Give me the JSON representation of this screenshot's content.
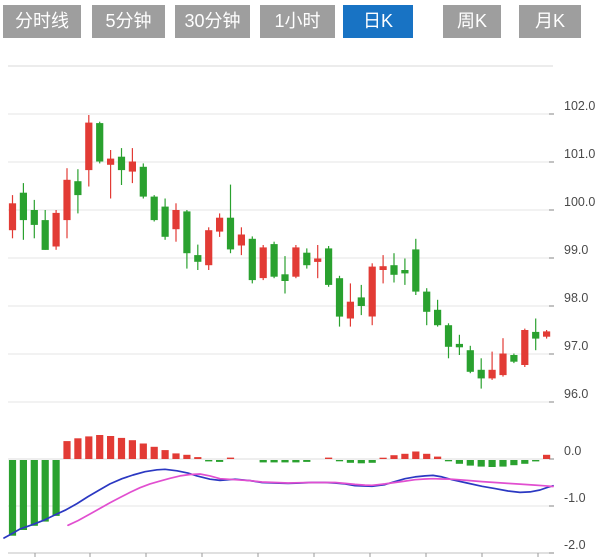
{
  "tabs": {
    "items": [
      {
        "label": "分时线",
        "active": false
      },
      {
        "label": "5分钟",
        "active": false
      },
      {
        "label": "30分钟",
        "active": false
      },
      {
        "label": "1小时",
        "active": false
      },
      {
        "label": "日K",
        "active": true
      },
      {
        "label": "周K",
        "active": false
      },
      {
        "label": "月K",
        "active": false
      }
    ]
  },
  "colors": {
    "background": "#ffffff",
    "tab_inactive": "#9e9e9e",
    "tab_active": "#1873c4",
    "tab_text": "#ffffff",
    "up": "#e23b35",
    "down": "#2aa12f",
    "dif_line": "#2b38c2",
    "dea_line": "#e14fd0",
    "grid": "#e4e4e4",
    "grid_top": "#d9d9d9",
    "zero_line": "#dedede",
    "axis_line": "#c2c2c2",
    "tick": "#9a9a9a",
    "axis_text": "#4a4a4a"
  },
  "chart_data": [
    {
      "type": "candlestick",
      "title": "日K (daily K-line)",
      "legend": "none",
      "grid": "horizontal",
      "ylim": [
        95.4,
        103.0
      ],
      "y_axis": {
        "side": "right",
        "ticks": [
          102.0,
          101.0,
          100.0,
          99.0,
          98.0,
          97.0,
          96.0
        ],
        "labels": [
          "102.0",
          "101.0",
          "100.0",
          "99.0",
          "98.0",
          "97.0",
          "96.0"
        ]
      },
      "candles_ohlc": [
        [
          99.58,
          100.31,
          99.41,
          100.14
        ],
        [
          100.36,
          100.56,
          99.38,
          99.79
        ],
        [
          100.0,
          100.21,
          99.41,
          99.69
        ],
        [
          99.79,
          100.0,
          99.17,
          99.17
        ],
        [
          99.24,
          100.0,
          99.17,
          99.94
        ],
        [
          99.79,
          100.87,
          99.41,
          100.63
        ],
        [
          100.6,
          100.85,
          99.93,
          100.31
        ],
        [
          100.83,
          101.98,
          100.49,
          101.82
        ],
        [
          101.81,
          101.84,
          100.97,
          101.01
        ],
        [
          100.94,
          101.25,
          100.24,
          101.07
        ],
        [
          101.11,
          101.29,
          100.52,
          100.83
        ],
        [
          100.8,
          101.29,
          100.56,
          101.01
        ],
        [
          100.9,
          100.97,
          100.24,
          100.28
        ],
        [
          100.28,
          100.31,
          99.76,
          99.79
        ],
        [
          100.07,
          100.24,
          99.38,
          99.44
        ],
        [
          99.6,
          100.14,
          99.34,
          100.0
        ],
        [
          99.97,
          100.0,
          98.78,
          99.1
        ],
        [
          99.06,
          99.28,
          98.75,
          98.92
        ],
        [
          98.85,
          99.64,
          98.75,
          99.58
        ],
        [
          99.55,
          99.93,
          99.44,
          99.84
        ],
        [
          99.84,
          100.53,
          99.1,
          99.18
        ],
        [
          99.26,
          99.64,
          99.06,
          99.49
        ],
        [
          99.4,
          99.45,
          98.47,
          98.54
        ],
        [
          98.58,
          99.27,
          98.54,
          99.22
        ],
        [
          99.29,
          99.34,
          98.58,
          98.61
        ],
        [
          98.66,
          99.04,
          98.26,
          98.52
        ],
        [
          98.61,
          99.27,
          98.58,
          99.22
        ],
        [
          99.11,
          99.2,
          98.78,
          98.85
        ],
        [
          98.92,
          99.27,
          98.58,
          98.99
        ],
        [
          99.2,
          99.25,
          98.4,
          98.44
        ],
        [
          98.58,
          98.63,
          97.57,
          97.78
        ],
        [
          97.74,
          98.47,
          97.57,
          98.09
        ],
        [
          98.18,
          98.44,
          97.81,
          98.0
        ],
        [
          97.78,
          98.89,
          97.6,
          98.82
        ],
        [
          98.75,
          99.06,
          98.47,
          98.83
        ],
        [
          98.85,
          99.1,
          98.49,
          98.65
        ],
        [
          98.75,
          98.99,
          98.44,
          98.68
        ],
        [
          99.18,
          99.4,
          98.23,
          98.3
        ],
        [
          98.3,
          98.37,
          97.6,
          97.88
        ],
        [
          97.92,
          98.13,
          97.57,
          97.6
        ],
        [
          97.6,
          97.64,
          96.91,
          97.15
        ],
        [
          97.21,
          97.4,
          96.98,
          97.14
        ],
        [
          97.08,
          97.17,
          96.6,
          96.63
        ],
        [
          96.67,
          96.91,
          96.28,
          96.49
        ],
        [
          96.49,
          97.05,
          96.46,
          96.67
        ],
        [
          96.56,
          97.33,
          96.53,
          97.01
        ],
        [
          96.98,
          97.01,
          96.81,
          96.84
        ],
        [
          96.77,
          97.53,
          96.73,
          97.5
        ],
        [
          97.46,
          97.74,
          97.08,
          97.32
        ],
        [
          97.36,
          97.5,
          97.32,
          97.47
        ]
      ]
    },
    {
      "type": "macd (bar histogram + line)",
      "title": "MACD",
      "legend": "none",
      "grid": "horizontal",
      "ylim": [
        -2.0,
        0.83
      ],
      "y_axis": {
        "side": "right",
        "ticks": [
          0.0,
          -1.0,
          -2.0
        ],
        "labels": [
          "0.0",
          "-1.0",
          "-2.0"
        ]
      },
      "histogram": [
        -1.61,
        -1.49,
        -1.4,
        -1.31,
        -1.19,
        0.38,
        0.44,
        0.48,
        0.51,
        0.49,
        0.45,
        0.4,
        0.33,
        0.26,
        0.19,
        0.12,
        0.09,
        0.04,
        -0.03,
        -0.04,
        0.03,
        0.0,
        0.0,
        -0.05,
        -0.05,
        -0.05,
        -0.05,
        -0.04,
        0.0,
        0.03,
        -0.02,
        -0.06,
        -0.07,
        -0.06,
        0.02,
        0.08,
        0.11,
        0.16,
        0.11,
        0.05,
        -0.02,
        -0.08,
        -0.12,
        -0.14,
        -0.15,
        -0.14,
        -0.11,
        -0.08,
        -0.03,
        0.09
      ],
      "dif_line": [
        [
          4,
          -1.68
        ],
        [
          10,
          -1.61
        ],
        [
          20,
          -1.49
        ],
        [
          32,
          -1.4
        ],
        [
          43,
          -1.31
        ],
        [
          55,
          -1.19
        ],
        [
          66,
          -1.08
        ],
        [
          77,
          -0.95
        ],
        [
          88,
          -0.8
        ],
        [
          100,
          -0.65
        ],
        [
          110,
          -0.53
        ],
        [
          122,
          -0.42
        ],
        [
          133,
          -0.34
        ],
        [
          145,
          -0.27
        ],
        [
          157,
          -0.23
        ],
        [
          165,
          -0.22
        ],
        [
          177,
          -0.25
        ],
        [
          188,
          -0.3
        ],
        [
          197,
          -0.36
        ],
        [
          210,
          -0.43
        ],
        [
          220,
          -0.455
        ],
        [
          235,
          -0.43
        ],
        [
          250,
          -0.46
        ],
        [
          262,
          -0.5
        ],
        [
          275,
          -0.51
        ],
        [
          288,
          -0.52
        ],
        [
          300,
          -0.51
        ],
        [
          312,
          -0.5
        ],
        [
          325,
          -0.5
        ],
        [
          335,
          -0.51
        ],
        [
          345,
          -0.53
        ],
        [
          355,
          -0.565
        ],
        [
          365,
          -0.575
        ],
        [
          372,
          -0.58
        ],
        [
          385,
          -0.545
        ],
        [
          395,
          -0.48
        ],
        [
          405,
          -0.42
        ],
        [
          415,
          -0.38
        ],
        [
          425,
          -0.36
        ],
        [
          433,
          -0.35
        ],
        [
          442,
          -0.38
        ],
        [
          452,
          -0.44
        ],
        [
          467,
          -0.51
        ],
        [
          482,
          -0.58
        ],
        [
          495,
          -0.63
        ],
        [
          508,
          -0.68
        ],
        [
          520,
          -0.71
        ],
        [
          530,
          -0.7
        ],
        [
          540,
          -0.66
        ],
        [
          548,
          -0.6
        ],
        [
          553,
          -0.57
        ]
      ],
      "dea_line": [
        [
          68,
          -1.41
        ],
        [
          78,
          -1.31
        ],
        [
          90,
          -1.17
        ],
        [
          100,
          -1.05
        ],
        [
          110,
          -0.93
        ],
        [
          120,
          -0.82
        ],
        [
          130,
          -0.71
        ],
        [
          140,
          -0.61
        ],
        [
          150,
          -0.53
        ],
        [
          160,
          -0.47
        ],
        [
          170,
          -0.41
        ],
        [
          180,
          -0.36
        ],
        [
          190,
          -0.33
        ],
        [
          200,
          -0.32
        ],
        [
          210,
          -0.36
        ],
        [
          220,
          -0.42
        ],
        [
          235,
          -0.44
        ],
        [
          250,
          -0.46
        ],
        [
          262,
          -0.49
        ],
        [
          275,
          -0.5
        ],
        [
          288,
          -0.51
        ],
        [
          300,
          -0.505
        ],
        [
          312,
          -0.5
        ],
        [
          325,
          -0.5
        ],
        [
          335,
          -0.5
        ],
        [
          345,
          -0.52
        ],
        [
          355,
          -0.54
        ],
        [
          365,
          -0.555
        ],
        [
          372,
          -0.56
        ],
        [
          385,
          -0.53
        ],
        [
          395,
          -0.5
        ],
        [
          405,
          -0.47
        ],
        [
          415,
          -0.44
        ],
        [
          425,
          -0.425
        ],
        [
          433,
          -0.42
        ],
        [
          442,
          -0.425
        ],
        [
          452,
          -0.43
        ],
        [
          467,
          -0.455
        ],
        [
          482,
          -0.48
        ],
        [
          495,
          -0.5
        ],
        [
          508,
          -0.52
        ],
        [
          520,
          -0.535
        ],
        [
          535,
          -0.555
        ],
        [
          545,
          -0.57
        ],
        [
          553,
          -0.585
        ]
      ]
    }
  ]
}
